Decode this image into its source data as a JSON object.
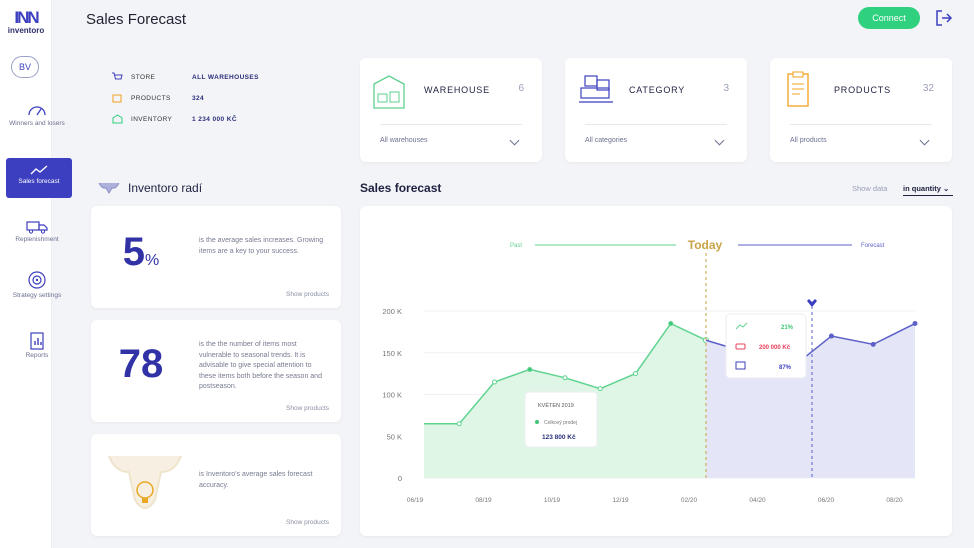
{
  "app": {
    "logo_mark": "INN",
    "logo_word": "inventoro"
  },
  "user": {
    "initials": "BV"
  },
  "nav": [
    {
      "label": "Winners and losers",
      "icon": "gauge-icon"
    },
    {
      "label": "Sales forecast",
      "icon": "trend-line-icon",
      "active": true
    },
    {
      "label": "Replenishment",
      "icon": "truck-icon"
    },
    {
      "label": "Strategy settings",
      "icon": "target-icon"
    },
    {
      "label": "Reports",
      "icon": "report-icon"
    }
  ],
  "header": {
    "title": "Sales Forecast",
    "connect_label": "Connect"
  },
  "summary": {
    "store_key": "STORE",
    "store_value": "ALL WAREHOUSES",
    "products_key": "PRODUCTS",
    "products_value": "324",
    "inventory_key": "INVENTORY",
    "inventory_value": "1 234 000 Kč"
  },
  "filters": [
    {
      "name": "WAREHOUSE",
      "count": "6",
      "selected": "All warehouses",
      "icon": "warehouse-icon"
    },
    {
      "name": "CATEGORY",
      "count": "3",
      "selected": "All categories",
      "icon": "boxes-icon"
    },
    {
      "name": "PRODUCTS",
      "count": "32",
      "selected": "All products",
      "icon": "clipboard-icon"
    }
  ],
  "radi": {
    "title": "Inventoro radí",
    "tips": [
      {
        "value": "5",
        "unit": "%",
        "text": "is the average sales increases. Growing items are a key to your success.",
        "link": "Show products"
      },
      {
        "value": "78",
        "unit": "",
        "text": "is the the number of items most vulnerable to seasonal trends. It is advisable to give special attention to these items both before the season and postseason.",
        "link": "Show products"
      },
      {
        "value": "",
        "unit": "",
        "text": "is Inventoro's average sales forecast accuracy.",
        "link": "Show products"
      }
    ]
  },
  "forecast": {
    "title": "Sales forecast",
    "show_data_label": "Show data",
    "show_data_value": "in quantity"
  },
  "chart_data": {
    "type": "area",
    "x": [
      "06/19",
      "08/19",
      "10/19",
      "12/19",
      "02/20",
      "04/20",
      "06/20",
      "08/20"
    ],
    "y_ticks": [
      "200 K",
      "150 K",
      "100 K",
      "50 K",
      "0"
    ],
    "ylim": [
      0,
      200000
    ],
    "series_past": [
      65000,
      65000,
      115000,
      130000,
      120000,
      107000,
      125000,
      185000,
      165000
    ],
    "series_forecast": [
      165000,
      150000,
      130000,
      170000,
      160000,
      185000
    ],
    "past_label": "Past",
    "today_label": "Today",
    "forecast_label": "Forecast",
    "tooltip_past": {
      "title": "KVĚTEN 2019",
      "row_label": "Celkový prodej",
      "value": "123 800 Kč"
    },
    "tooltip_forecast": {
      "pct1": "21%",
      "value": "200 000 Kč",
      "pct2": "87%"
    }
  }
}
